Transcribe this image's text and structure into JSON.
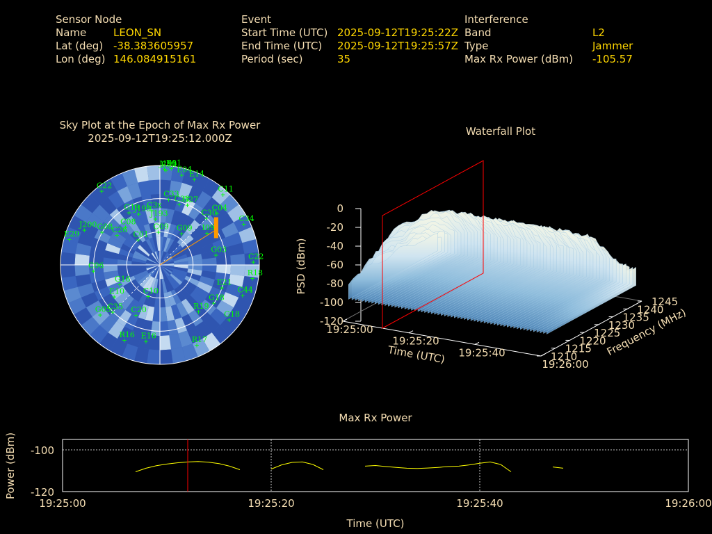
{
  "header": {
    "sensor": {
      "title": "Sensor Node",
      "rows": [
        {
          "label": "Name",
          "value": "LEON_SN"
        },
        {
          "label": "Lat (deg)",
          "value": "-38.383605957"
        },
        {
          "label": "Lon (deg)",
          "value": "146.084915161"
        }
      ]
    },
    "event": {
      "title": "Event",
      "rows": [
        {
          "label": "Start Time (UTC)",
          "value": "2025-09-12T19:25:22Z"
        },
        {
          "label": "End Time (UTC)",
          "value": "2025-09-12T19:25:57Z"
        },
        {
          "label": "Period (sec)",
          "value": "35"
        }
      ]
    },
    "interference": {
      "title": "Interference",
      "rows": [
        {
          "label": "Band",
          "value": "L2"
        },
        {
          "label": "Type",
          "value": "Jammer"
        },
        {
          "label": "Max Rx Power (dBm)",
          "value": "-105.57"
        }
      ]
    }
  },
  "colors": {
    "label": "#f5deb3",
    "value": "#ffd700",
    "satellite": "#00ff00",
    "marker": "#ff0000",
    "trace": "#ffff00",
    "jammer_bar": "#ff9900"
  },
  "chart_data": [
    {
      "type": "scatter",
      "subtype": "polar-sky-plot",
      "title": "Sky Plot at the Epoch of Max Rx Power",
      "subtitle": "2025-09-12T19:25:12.000Z",
      "satellites": [
        {
          "id": "J195",
          "az": 3,
          "el": 3
        },
        {
          "id": "E33",
          "az": 4,
          "el": 4
        },
        {
          "id": "E01",
          "az": 7,
          "el": 2
        },
        {
          "id": "E04",
          "az": 14,
          "el": 6
        },
        {
          "id": "E14",
          "az": 22,
          "el": 6
        },
        {
          "id": "C11",
          "az": 42,
          "el": 4
        },
        {
          "id": "C22",
          "az": 322,
          "el": 5
        },
        {
          "id": "C33",
          "az": 8,
          "el": 30
        },
        {
          "id": "C38",
          "az": 18,
          "el": 32
        },
        {
          "id": "G27",
          "az": 25,
          "el": 30
        },
        {
          "id": "C30",
          "az": 45,
          "el": 30
        },
        {
          "id": "C04",
          "az": 48,
          "el": 20
        },
        {
          "id": "C34",
          "az": 64,
          "el": 5
        },
        {
          "id": "G19",
          "az": 330,
          "el": 35
        },
        {
          "id": "J199",
          "az": 338,
          "el": 40
        },
        {
          "id": "C3x",
          "az": 352,
          "el": 40
        },
        {
          "id": "C09",
          "az": 358,
          "el": 60
        },
        {
          "id": "J193",
          "az": 355,
          "el": 48
        },
        {
          "id": "G09",
          "az": 35,
          "el": 55
        },
        {
          "id": "I09",
          "az": 56,
          "el": 38
        },
        {
          "id": "J200",
          "az": 295,
          "el": 15
        },
        {
          "id": "G08",
          "az": 300,
          "el": 30
        },
        {
          "id": "E29",
          "az": 286,
          "el": 5
        },
        {
          "id": "C08",
          "az": 318,
          "el": 44
        },
        {
          "id": "C26",
          "az": 305,
          "el": 43
        },
        {
          "id": "C01",
          "az": 320,
          "el": 60
        },
        {
          "id": "G03",
          "az": 80,
          "el": 38
        },
        {
          "id": "C22b",
          "az": 88,
          "el": 5
        },
        {
          "id": "C06",
          "az": 265,
          "el": 30
        },
        {
          "id": "E21",
          "az": 110,
          "el": 30
        },
        {
          "id": "R18",
          "az": 98,
          "el": 5
        },
        {
          "id": "C44",
          "az": 110,
          "el": 10
        },
        {
          "id": "G18",
          "az": 125,
          "el": 30
        },
        {
          "id": "C10",
          "az": 200,
          "el": 60
        },
        {
          "id": "G16",
          "az": 244,
          "el": 50
        },
        {
          "id": "E10",
          "az": 235,
          "el": 40
        },
        {
          "id": "C35",
          "az": 225,
          "el": 30
        },
        {
          "id": "G05",
          "az": 230,
          "el": 20
        },
        {
          "id": "R19",
          "az": 140,
          "el": 35
        },
        {
          "id": "R17",
          "az": 155,
          "el": 10
        },
        {
          "id": "G18b",
          "az": 128,
          "el": 10
        },
        {
          "id": "E16",
          "az": 190,
          "el": 20
        },
        {
          "id": "R16",
          "az": 205,
          "el": 15
        },
        {
          "id": "C20",
          "az": 205,
          "el": 40
        }
      ],
      "jammer_direction": {
        "az": 58,
        "el": 30
      }
    },
    {
      "type": "area",
      "subtype": "3d-waterfall",
      "title": "Waterfall Plot",
      "xlabel": "Time (UTC)",
      "ylabel": "Frequency (MHz)",
      "zlabel": "PSD (dBm)",
      "x_ticks": [
        "19:25:00",
        "19:25:20",
        "19:25:40",
        "19:26:00"
      ],
      "y_ticks": [
        1210,
        1215,
        1220,
        1225,
        1230,
        1235,
        1240,
        1245
      ],
      "z_ticks": [
        0,
        -20,
        -40,
        -60,
        -80,
        -100,
        -120
      ],
      "xlim": [
        "19:25:00",
        "19:26:00"
      ],
      "ylim": [
        1210,
        1245
      ],
      "zlim": [
        -120,
        0
      ],
      "epoch_plane": "19:25:12",
      "psd_profile": [
        -78,
        -60,
        -40,
        -33,
        -30,
        -30,
        -29,
        -30,
        -32,
        -31,
        -30,
        -31,
        -33,
        -35,
        -38,
        -42,
        -48,
        -55,
        -65,
        -74
      ],
      "noise_floor": -85
    },
    {
      "type": "line",
      "title": "Max Rx Power",
      "xlabel": "Time (UTC)",
      "ylabel": "Power (dBm)",
      "x_ticks": [
        "19:25:00",
        "19:25:20",
        "19:25:40",
        "19:26:00"
      ],
      "y_ticks": [
        -100,
        -120
      ],
      "xlim": [
        0,
        60
      ],
      "ylim": [
        -120,
        -95
      ],
      "marker_time": 12,
      "grid": true,
      "segments": [
        {
          "x": [
            7,
            8,
            9,
            10,
            11,
            12,
            13,
            14,
            15,
            16,
            17
          ],
          "y": [
            -110.5,
            -108.8,
            -107.6,
            -106.8,
            -106.2,
            -105.8,
            -105.6,
            -105.9,
            -106.6,
            -107.8,
            -109.5
          ]
        },
        {
          "x": [
            20,
            21,
            22,
            23,
            24,
            25
          ],
          "y": [
            -109.2,
            -107.2,
            -106.0,
            -105.8,
            -107.0,
            -109.5
          ]
        },
        {
          "x": [
            29,
            30,
            31,
            32,
            33,
            34,
            35,
            36,
            37,
            38,
            39,
            40,
            41,
            42,
            43
          ],
          "y": [
            -107.8,
            -107.5,
            -108.0,
            -108.4,
            -108.8,
            -108.9,
            -108.7,
            -108.4,
            -108.0,
            -107.8,
            -107.2,
            -106.4,
            -105.8,
            -107.0,
            -110.5
          ]
        },
        {
          "x": [
            47,
            48
          ],
          "y": [
            -108.2,
            -108.8
          ]
        }
      ]
    }
  ]
}
